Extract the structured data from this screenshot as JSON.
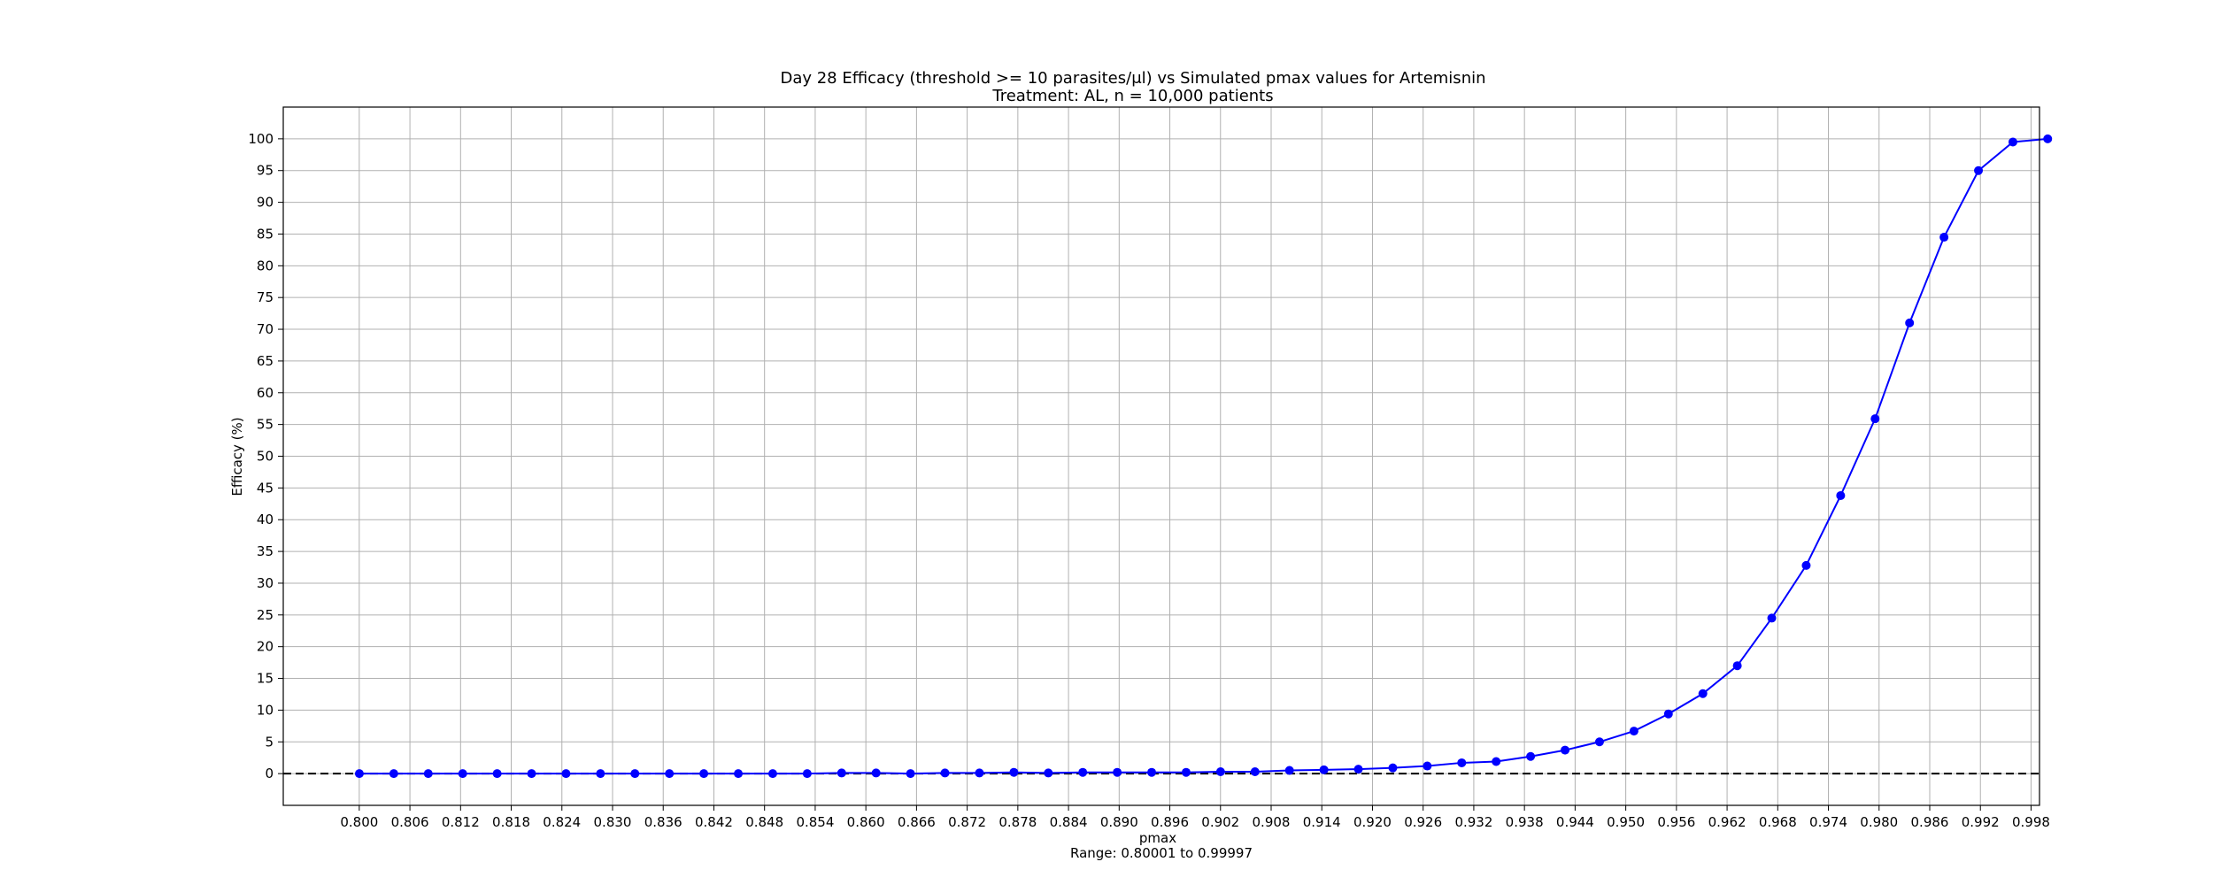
{
  "chart_data": {
    "type": "line",
    "title": "Day 28 Efficacy (threshold >= 10 parasites/μl) vs Simulated pmax values for Artemisnin",
    "subtitle": "Treatment: AL, n = 10,000 patients",
    "xlabel": "pmax",
    "xlabel_note": "Range: 0.80001 to 0.99997",
    "ylabel": "Efficacy (%)",
    "xlim": [
      0.791,
      0.999
    ],
    "ylim": [
      -5,
      105
    ],
    "grid": true,
    "reference_line": {
      "y": 0,
      "style": "dashed",
      "color": "#000000"
    },
    "x_ticks": [
      "0.800",
      "0.806",
      "0.812",
      "0.818",
      "0.824",
      "0.830",
      "0.836",
      "0.842",
      "0.848",
      "0.854",
      "0.860",
      "0.866",
      "0.872",
      "0.878",
      "0.884",
      "0.890",
      "0.896",
      "0.902",
      "0.908",
      "0.914",
      "0.920",
      "0.926",
      "0.932",
      "0.938",
      "0.944",
      "0.950",
      "0.956",
      "0.962",
      "0.968",
      "0.974",
      "0.980",
      "0.986",
      "0.992",
      "0.998"
    ],
    "y_ticks": [
      0,
      5,
      10,
      15,
      20,
      25,
      30,
      35,
      40,
      45,
      50,
      55,
      60,
      65,
      70,
      75,
      80,
      85,
      90,
      95,
      100
    ],
    "series": [
      {
        "color": "#0000ff",
        "marker": "circle",
        "x": [
          0.80001,
          0.80409,
          0.80817,
          0.81225,
          0.81633,
          0.82041,
          0.82449,
          0.82857,
          0.83265,
          0.83673,
          0.84081,
          0.84489,
          0.84897,
          0.85305,
          0.85713,
          0.86121,
          0.86529,
          0.86937,
          0.87345,
          0.87753,
          0.88161,
          0.88569,
          0.88977,
          0.89385,
          0.89793,
          0.90201,
          0.90609,
          0.91017,
          0.91425,
          0.91833,
          0.92241,
          0.92649,
          0.93057,
          0.93465,
          0.93873,
          0.94281,
          0.94689,
          0.95097,
          0.95505,
          0.95913,
          0.96321,
          0.96729,
          0.97137,
          0.97545,
          0.97953,
          0.98361,
          0.98769,
          0.99177,
          0.99585,
          0.99997
        ],
        "y": [
          0,
          0,
          0,
          0,
          0,
          0,
          0,
          0,
          0,
          0,
          0,
          0,
          0,
          0,
          0.1,
          0.1,
          0,
          0.1,
          0.1,
          0.2,
          0.1,
          0.2,
          0.2,
          0.2,
          0.2,
          0.3,
          0.3,
          0.5,
          0.6,
          0.7,
          0.9,
          1.2,
          1.7,
          1.9,
          2.7,
          3.7,
          5.0,
          6.7,
          9.4,
          12.6,
          17.0,
          24.5,
          32.8,
          43.8,
          55.9,
          71.0,
          84.5,
          95.0,
          99.5,
          100
        ]
      }
    ]
  }
}
